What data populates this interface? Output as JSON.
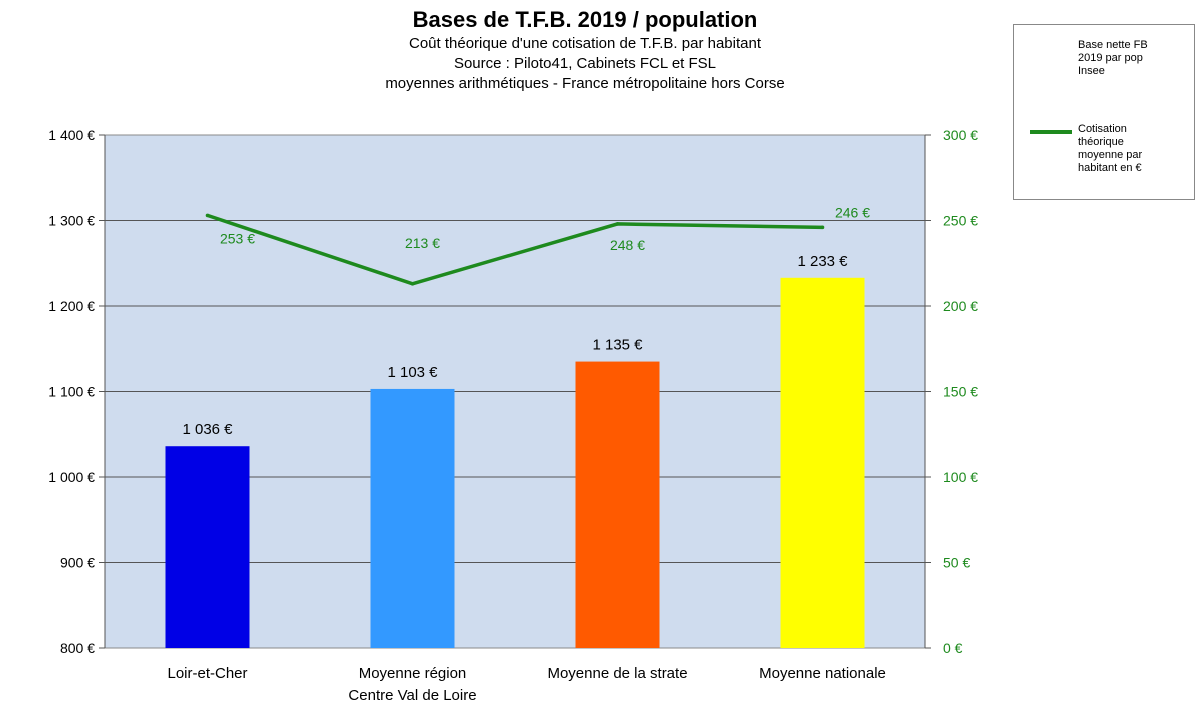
{
  "chart_data": {
    "type": "bar",
    "title": "Bases de T.F.B. 2019 / population",
    "subtitle_lines": [
      "Coût théorique d'une cotisation de T.F.B. par habitant",
      "Source : Piloto41, Cabinets FCL et FSL",
      "moyennes arithmétiques - France métropolitaine hors Corse"
    ],
    "categories": [
      "Loir-et-Cher",
      "Moyenne région\nCentre Val de Loire",
      "Moyenne de la strate",
      "Moyenne nationale"
    ],
    "category_labels": [
      [
        "Loir-et-Cher"
      ],
      [
        "Moyenne région",
        "Centre Val de Loire"
      ],
      [
        "Moyenne de la strate"
      ],
      [
        "Moyenne nationale"
      ]
    ],
    "series": [
      {
        "name": "Base nette FB 2019 par pop Insee",
        "kind": "bar",
        "axis": "left",
        "values": [
          1036,
          1103,
          1135,
          1233
        ],
        "labels": [
          "1 036 €",
          "1 103 €",
          "1 135 €",
          "1 233 €"
        ],
        "colors": [
          "#0000e6",
          "#3399ff",
          "#ff5a00",
          "#ffff00"
        ]
      },
      {
        "name": "Cotisation théorique moyenne par habitant en €",
        "kind": "line",
        "axis": "right",
        "values": [
          253,
          213,
          248,
          246
        ],
        "labels": [
          "253 €",
          "213 €",
          "248 €",
          "246 €"
        ],
        "color": "#1e8a1e"
      }
    ],
    "y_left": {
      "min": 800,
      "max": 1400,
      "ticks": [
        800,
        900,
        1000,
        1100,
        1200,
        1300,
        1400
      ],
      "tick_labels": [
        "800 €",
        "900 €",
        "1 000 €",
        "1 100 €",
        "1 200 €",
        "1 300 €",
        "1 400 €"
      ]
    },
    "y_right": {
      "min": 0,
      "max": 300,
      "ticks": [
        0,
        50,
        100,
        150,
        200,
        250,
        300
      ],
      "tick_labels": [
        "0 €",
        "50 €",
        "100 €",
        "150 €",
        "200 €",
        "250 €",
        "300 €"
      ],
      "color": "#1e8a1e"
    },
    "grid": true,
    "plot_background": "#cfdcee",
    "legend_position": "top-right"
  },
  "legend": {
    "bar_entry": [
      "Base nette FB",
      "2019 par pop",
      "Insee"
    ],
    "line_entry": [
      "Cotisation",
      "théorique",
      "moyenne par",
      "habitant en €"
    ]
  }
}
